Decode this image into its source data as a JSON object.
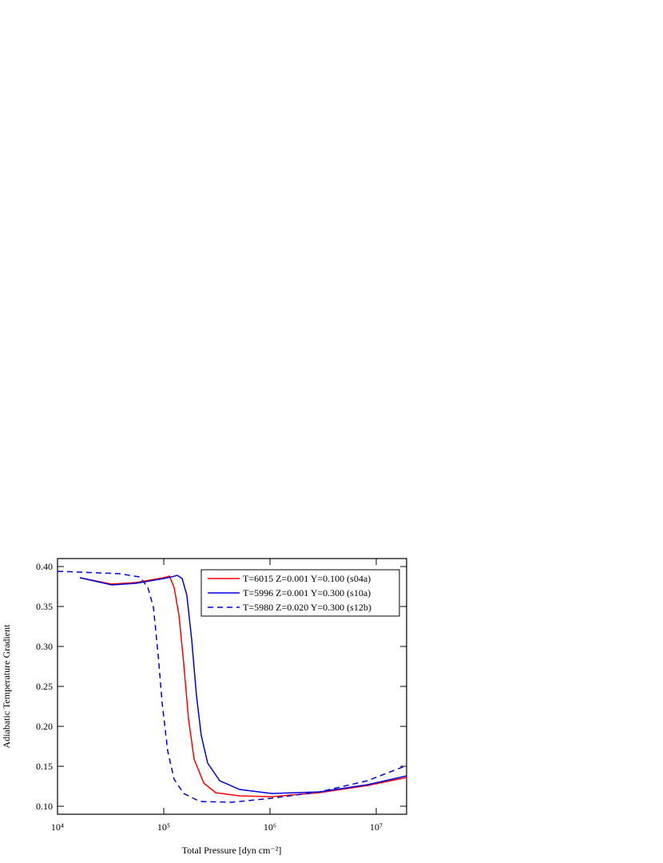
{
  "chart_data": {
    "type": "line",
    "x_label": "Total Pressure [dyn cm⁻²]",
    "y_label": "Adiabatic Temperature Gradient",
    "xscale": "log",
    "xlim": [
      10000,
      19300000
    ],
    "xticks": [
      {
        "value": 10000,
        "label": "10⁴"
      },
      {
        "value": 100000,
        "label": "10⁵"
      },
      {
        "value": 1000000,
        "label": "10⁶"
      },
      {
        "value": 10000000,
        "label": "10⁷"
      }
    ],
    "ylim": [
      0.09,
      0.41
    ],
    "yticks": [
      {
        "value": 0.1,
        "label": "0.10"
      },
      0.15,
      {
        "value": 0.2,
        "label": "0.20"
      },
      0.25,
      {
        "value": 0.3,
        "label": "0.30"
      },
      0.35,
      {
        "value": 0.4,
        "label": "0.40"
      }
    ],
    "legend": "upper right",
    "series": [
      {
        "name": "T=6015 Z=0.001 Y=0.100 (s04a)",
        "color": "#ff0000",
        "dash": false,
        "x": [
          16250,
          32400,
          54600,
          100000,
          113000,
          125000,
          139000,
          154000,
          171000,
          193000,
          238000,
          308000,
          518000,
          1035000,
          2920000,
          8270000,
          19300000
        ],
        "values": [
          0.386,
          0.378,
          0.38,
          0.386,
          0.388,
          0.374,
          0.339,
          0.279,
          0.209,
          0.159,
          0.129,
          0.117,
          0.113,
          0.112,
          0.117,
          0.126,
          0.136
        ]
      },
      {
        "name": "T=5996 Z=0.001 Y=0.300 (s10a)",
        "color": "#0000e0",
        "dash": false,
        "x": [
          16250,
          32400,
          54600,
          100000,
          118000,
          134000,
          149000,
          165000,
          183000,
          203000,
          225000,
          259000,
          336000,
          518000,
          1035000,
          2920000,
          8270000,
          19300000
        ],
        "values": [
          0.386,
          0.377,
          0.379,
          0.385,
          0.387,
          0.389,
          0.385,
          0.364,
          0.309,
          0.239,
          0.189,
          0.154,
          0.132,
          0.121,
          0.116,
          0.118,
          0.127,
          0.138
        ]
      },
      {
        "name": "T=5980 Z=0.020 Y=0.300 (s12b)",
        "color": "#0000e0",
        "dash": true,
        "x": [
          10000,
          16250,
          38500,
          59400,
          70800,
          79900,
          88600,
          96600,
          109000,
          125000,
          154000,
          218000,
          435000,
          1035000,
          2920000,
          8270000,
          19300000
        ],
        "values": [
          0.394,
          0.393,
          0.391,
          0.387,
          0.374,
          0.349,
          0.289,
          0.229,
          0.169,
          0.134,
          0.116,
          0.106,
          0.105,
          0.11,
          0.118,
          0.132,
          0.151
        ]
      }
    ]
  }
}
